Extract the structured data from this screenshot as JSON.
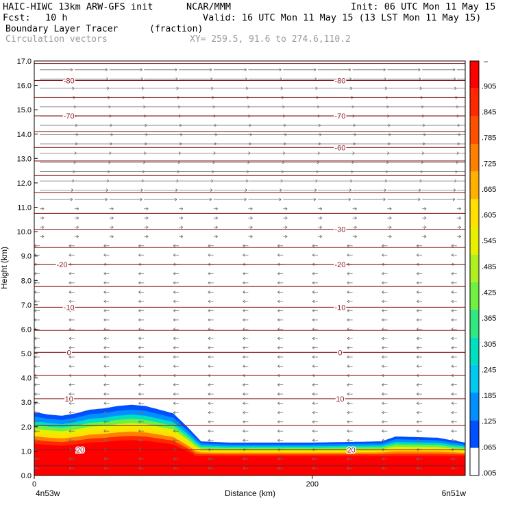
{
  "header": {
    "model": "HAIC-HIWC 13km ARW-GFS init",
    "org": "NCAR/MMM",
    "init": "Init: 06 UTC Mon 11 May 15",
    "fcst_label": "Fcst:",
    "fcst_value": "10 h",
    "valid": "Valid: 16 UTC Mon 11 May 15 (13 LST Mon 11 May 15)",
    "field": "Boundary Layer Tracer",
    "units": "(fraction)",
    "vectors": "Circulation vectors",
    "xy": "XY= 259.5, 91.6 to 274.6,110.2"
  },
  "colors": {
    "contour": "#8b1a1a",
    "vector": "#6e6e6e",
    "colorbar": [
      "#ffffff",
      "#0050ff",
      "#0090ff",
      "#00c8f0",
      "#00e0c0",
      "#30e880",
      "#70f040",
      "#b0f020",
      "#e8f000",
      "#ffe000",
      "#ffb000",
      "#ff8000",
      "#ff5000",
      "#ff2800",
      "#ff0000"
    ]
  },
  "chart_data": {
    "type": "heatmap",
    "xlabel": "Distance (km)",
    "ylabel": "Height (km)",
    "xlim": [
      0,
      310
    ],
    "ylim": [
      0,
      17
    ],
    "x_ticks": [
      0,
      200
    ],
    "x_tick_labels": [
      "0",
      "200"
    ],
    "x_end_labels": [
      "4n53w",
      "6n51w"
    ],
    "y_ticks": [
      0,
      1,
      2,
      3,
      4,
      5,
      6,
      7,
      8,
      9,
      10,
      11,
      12,
      13,
      14,
      15,
      16,
      17
    ],
    "y_tick_labels": [
      "0.0",
      "1.0",
      "2.0",
      "3.0",
      "4.0",
      "5.0",
      "6.0",
      "7.0",
      "8.0",
      "9.0",
      "10.0",
      "11.0",
      "12.0",
      "13.0",
      "14.0",
      "15.0",
      "16.0",
      "17.0"
    ],
    "colorbar_levels": [
      ".005",
      ".065",
      ".125",
      ".185",
      ".245",
      ".305",
      ".365",
      ".425",
      ".485",
      ".545",
      ".605",
      ".665",
      ".725",
      ".785",
      ".845",
      ".905"
    ],
    "colorbar_top_label": "–",
    "tracer_top_km": [
      [
        0,
        2.6
      ],
      [
        10,
        2.5
      ],
      [
        20,
        2.45
      ],
      [
        30,
        2.55
      ],
      [
        40,
        2.7
      ],
      [
        50,
        2.75
      ],
      [
        60,
        2.85
      ],
      [
        70,
        2.9
      ],
      [
        80,
        2.85
      ],
      [
        90,
        2.7
      ],
      [
        100,
        2.55
      ],
      [
        110,
        2.0
      ],
      [
        120,
        1.4
      ],
      [
        140,
        1.35
      ],
      [
        200,
        1.35
      ],
      [
        250,
        1.4
      ],
      [
        260,
        1.6
      ],
      [
        290,
        1.55
      ],
      [
        310,
        1.35
      ]
    ],
    "temperature_contours_C": [
      {
        "level": -80,
        "label_y_km": 16.2,
        "label_x_km": [
          25,
          220
        ]
      },
      {
        "level": -70,
        "label_y_km": 14.75,
        "label_x_km": [
          25,
          220
        ]
      },
      {
        "level": -60,
        "label_y_km": 13.45,
        "label_x_km": [
          220
        ]
      },
      {
        "level": -30,
        "label_y_km": 10.1,
        "label_x_km": [
          220
        ]
      },
      {
        "level": -20,
        "label_y_km": 8.65,
        "label_x_km": [
          20,
          220
        ]
      },
      {
        "level": -10,
        "label_y_km": 6.9,
        "label_x_km": [
          25,
          220
        ]
      },
      {
        "level": 0,
        "label_y_km": 5.05,
        "label_x_km": [
          25,
          220
        ]
      },
      {
        "level": 10,
        "label_y_km": 3.15,
        "label_x_km": [
          25,
          220
        ]
      },
      {
        "level": 20,
        "label_y_km": 1.05,
        "label_x_km": [
          33,
          228
        ]
      }
    ]
  }
}
